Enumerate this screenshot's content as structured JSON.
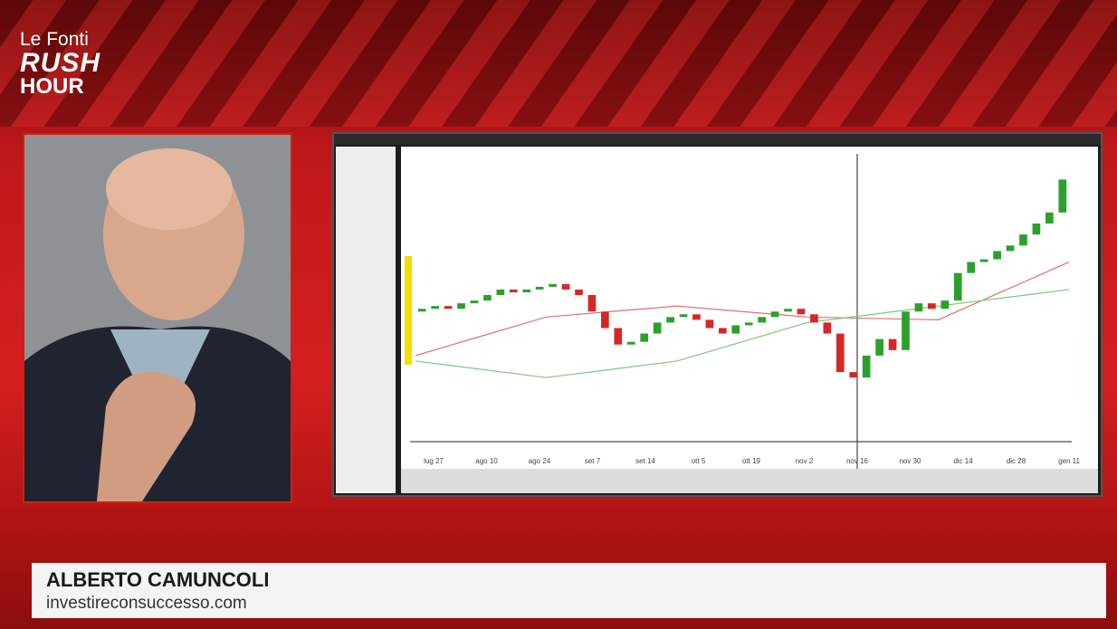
{
  "logo": {
    "line1": "Le Fonti",
    "line2": "RUSH",
    "line3": "HOUR"
  },
  "lower_third": {
    "name": "ALBERTO CAMUNCOLI",
    "website": "investireconsuccesso.com"
  },
  "chart": {
    "x_labels": [
      "lug 27",
      "ago 10",
      "ago 24",
      "set 7",
      "set 14",
      "ott 5",
      "ott 19",
      "nov 2",
      "nov 16",
      "nov 30",
      "dic 14",
      "dic 28",
      "gen 11"
    ],
    "ylim": [
      0,
      100
    ],
    "opens": [
      44,
      45,
      46,
      45,
      47,
      48,
      50,
      52,
      51,
      52,
      53,
      54,
      52,
      50,
      44,
      38,
      32,
      33,
      36,
      40,
      42,
      43,
      41,
      38,
      36,
      39,
      40,
      42,
      44,
      45,
      43,
      40,
      36,
      22,
      20,
      28,
      34,
      30,
      44,
      47,
      45,
      48,
      58,
      62,
      63,
      66,
      68,
      72,
      76,
      80
    ],
    "closes": [
      45,
      46,
      45,
      47,
      48,
      50,
      52,
      51,
      52,
      53,
      54,
      52,
      50,
      44,
      38,
      32,
      33,
      36,
      40,
      42,
      43,
      41,
      38,
      36,
      39,
      40,
      42,
      44,
      45,
      43,
      40,
      36,
      22,
      20,
      28,
      34,
      30,
      44,
      47,
      45,
      48,
      58,
      62,
      63,
      66,
      68,
      72,
      76,
      80,
      92
    ],
    "up_color": "#2ca02c",
    "down_color": "#d62728",
    "moving_averages": [
      {
        "color": "#e07070",
        "values": [
          28,
          42,
          46,
          42,
          41,
          62
        ]
      },
      {
        "color": "#7cc77c",
        "values": [
          26,
          20,
          26,
          40,
          46,
          52
        ]
      }
    ]
  }
}
